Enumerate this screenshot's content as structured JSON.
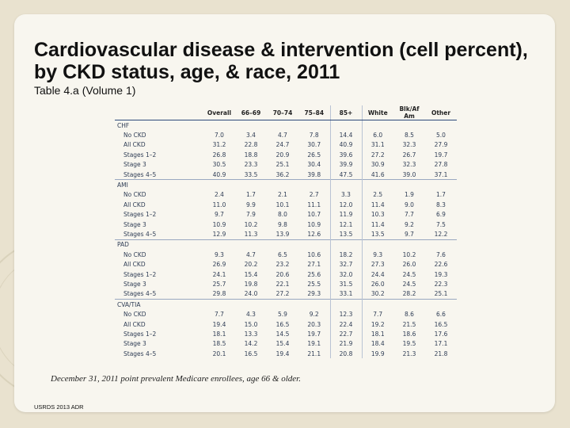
{
  "title": "Cardiovascular disease & intervention  (cell percent), by CKD status, age, & race, 2011",
  "subtitle": "Table 4.a (Volume 1)",
  "table": {
    "columns": [
      "",
      "Overall",
      "66–69",
      "70–74",
      "75–84",
      "85+",
      "White",
      "Blk/Af Am",
      "Other"
    ],
    "groups": [
      {
        "name": "CHF",
        "rows": [
          {
            "label": "No CKD",
            "values": [
              "7.0",
              "3.4",
              "4.7",
              "7.8",
              "14.4",
              "6.0",
              "8.5",
              "5.0"
            ]
          },
          {
            "label": "All CKD",
            "values": [
              "31.2",
              "22.8",
              "24.7",
              "30.7",
              "40.9",
              "31.1",
              "32.3",
              "27.9"
            ]
          },
          {
            "label": "Stages 1–2",
            "values": [
              "26.8",
              "18.8",
              "20.9",
              "26.5",
              "39.6",
              "27.2",
              "26.7",
              "19.7"
            ]
          },
          {
            "label": "Stage 3",
            "values": [
              "30.5",
              "23.3",
              "25.1",
              "30.4",
              "39.9",
              "30.9",
              "32.3",
              "27.8"
            ]
          },
          {
            "label": "Stages 4–5",
            "values": [
              "40.9",
              "33.5",
              "36.2",
              "39.8",
              "47.5",
              "41.6",
              "39.0",
              "37.1"
            ]
          }
        ]
      },
      {
        "name": "AMI",
        "rows": [
          {
            "label": "No CKD",
            "values": [
              "2.4",
              "1.7",
              "2.1",
              "2.7",
              "3.3",
              "2.5",
              "1.9",
              "1.7"
            ]
          },
          {
            "label": "All CKD",
            "values": [
              "11.0",
              "9.9",
              "10.1",
              "11.1",
              "12.0",
              "11.4",
              "9.0",
              "8.3"
            ]
          },
          {
            "label": "Stages 1–2",
            "values": [
              "9.7",
              "7.9",
              "8.0",
              "10.7",
              "11.9",
              "10.3",
              "7.7",
              "6.9"
            ]
          },
          {
            "label": "Stage 3",
            "values": [
              "10.9",
              "10.2",
              "9.8",
              "10.9",
              "12.1",
              "11.4",
              "9.2",
              "7.5"
            ]
          },
          {
            "label": "Stages 4–5",
            "values": [
              "12.9",
              "11.3",
              "13.9",
              "12.6",
              "13.5",
              "13.5",
              "9.7",
              "12.2"
            ]
          }
        ]
      },
      {
        "name": "PAD",
        "rows": [
          {
            "label": "No CKD",
            "values": [
              "9.3",
              "4.7",
              "6.5",
              "10.6",
              "18.2",
              "9.3",
              "10.2",
              "7.6"
            ]
          },
          {
            "label": "All CKD",
            "values": [
              "26.9",
              "20.2",
              "23.2",
              "27.1",
              "32.7",
              "27.3",
              "26.0",
              "22.6"
            ]
          },
          {
            "label": "Stages 1–2",
            "values": [
              "24.1",
              "15.4",
              "20.6",
              "25.6",
              "32.0",
              "24.4",
              "24.5",
              "19.3"
            ]
          },
          {
            "label": "Stage 3",
            "values": [
              "25.7",
              "19.8",
              "22.1",
              "25.5",
              "31.5",
              "26.0",
              "24.5",
              "22.3"
            ]
          },
          {
            "label": "Stages 4–5",
            "values": [
              "29.8",
              "24.0",
              "27.2",
              "29.3",
              "33.1",
              "30.2",
              "28.2",
              "25.1"
            ]
          }
        ]
      },
      {
        "name": "CVA/TIA",
        "rows": [
          {
            "label": "No CKD",
            "values": [
              "7.7",
              "4.3",
              "5.9",
              "9.2",
              "12.3",
              "7.7",
              "8.6",
              "6.6"
            ]
          },
          {
            "label": "All CKD",
            "values": [
              "19.4",
              "15.0",
              "16.5",
              "20.3",
              "22.4",
              "19.2",
              "21.5",
              "16.5"
            ]
          },
          {
            "label": "Stages 1–2",
            "values": [
              "18.1",
              "13.3",
              "14.5",
              "19.7",
              "22.7",
              "18.1",
              "18.6",
              "17.6"
            ]
          },
          {
            "label": "Stage 3",
            "values": [
              "18.5",
              "14.2",
              "15.4",
              "19.1",
              "21.9",
              "18.4",
              "19.5",
              "17.1"
            ]
          },
          {
            "label": "Stages 4–5",
            "values": [
              "20.1",
              "16.5",
              "19.4",
              "21.1",
              "20.8",
              "19.9",
              "21.3",
              "21.8"
            ]
          }
        ]
      }
    ]
  },
  "footnote": "December 31, 2011 point prevalent Medicare enrollees, age 66 & older.",
  "source": "USRDS 2013 ADR"
}
